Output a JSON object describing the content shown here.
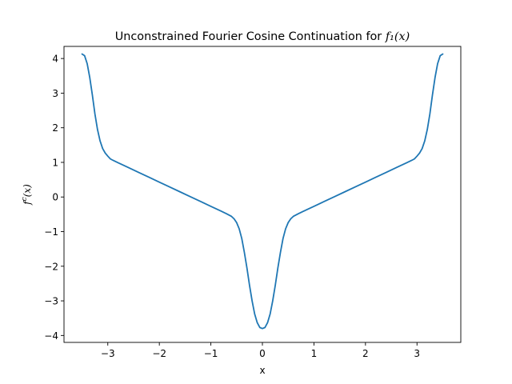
{
  "chart_data": {
    "type": "line",
    "title": "Unconstrained Fourier Cosine Continuation for",
    "title_math": "f₁(x)",
    "xlabel": "x",
    "ylabel": "f^c(x)",
    "ylabel_base": "f",
    "ylabel_sup": "c",
    "ylabel_arg": "(x)",
    "xlim": [
      -3.85,
      3.85
    ],
    "ylim": [
      -4.2,
      4.35
    ],
    "xticks": [
      -3,
      -2,
      -1,
      0,
      1,
      2,
      3
    ],
    "xtick_labels": [
      "−3",
      "−2",
      "−1",
      "0",
      "1",
      "2",
      "3"
    ],
    "yticks": [
      -4,
      -3,
      -2,
      -1,
      0,
      1,
      2,
      3,
      4
    ],
    "ytick_labels": [
      "−4",
      "−3",
      "−2",
      "−1",
      "0",
      "1",
      "2",
      "3",
      "4"
    ],
    "grid": false,
    "series": [
      {
        "color": "#1f77b4",
        "x": [
          -3.5,
          -3.45,
          -3.4,
          -3.35,
          -3.3,
          -3.25,
          -3.2,
          -3.15,
          -3.1,
          -3.05,
          -3.0,
          -2.95,
          -2.9,
          -2.8,
          -2.6,
          -2.4,
          -2.2,
          -2.0,
          -1.8,
          -1.6,
          -1.4,
          -1.2,
          -1.0,
          -0.8,
          -0.7,
          -0.6,
          -0.55,
          -0.5,
          -0.45,
          -0.4,
          -0.35,
          -0.3,
          -0.25,
          -0.2,
          -0.15,
          -0.1,
          -0.05,
          0.0,
          0.05,
          0.1,
          0.15,
          0.2,
          0.25,
          0.3,
          0.35,
          0.4,
          0.45,
          0.5,
          0.55,
          0.6,
          0.7,
          0.8,
          1.0,
          1.2,
          1.4,
          1.6,
          1.8,
          2.0,
          2.2,
          2.4,
          2.6,
          2.8,
          2.9,
          2.95,
          3.0,
          3.05,
          3.1,
          3.15,
          3.2,
          3.25,
          3.3,
          3.35,
          3.4,
          3.45,
          3.5
        ],
        "y": [
          4.13,
          4.08,
          3.85,
          3.45,
          2.95,
          2.4,
          1.95,
          1.62,
          1.4,
          1.27,
          1.18,
          1.1,
          1.06,
          0.99,
          0.85,
          0.71,
          0.57,
          0.43,
          0.29,
          0.15,
          0.01,
          -0.13,
          -0.27,
          -0.41,
          -0.48,
          -0.56,
          -0.63,
          -0.74,
          -0.92,
          -1.2,
          -1.6,
          -2.05,
          -2.55,
          -3.0,
          -3.38,
          -3.63,
          -3.77,
          -3.8,
          -3.77,
          -3.63,
          -3.38,
          -3.0,
          -2.55,
          -2.05,
          -1.6,
          -1.2,
          -0.92,
          -0.74,
          -0.63,
          -0.56,
          -0.48,
          -0.41,
          -0.27,
          -0.13,
          0.01,
          0.15,
          0.29,
          0.43,
          0.57,
          0.71,
          0.85,
          0.99,
          1.06,
          1.1,
          1.18,
          1.27,
          1.4,
          1.62,
          1.95,
          2.4,
          2.95,
          3.45,
          3.85,
          4.08,
          4.13
        ]
      }
    ]
  }
}
